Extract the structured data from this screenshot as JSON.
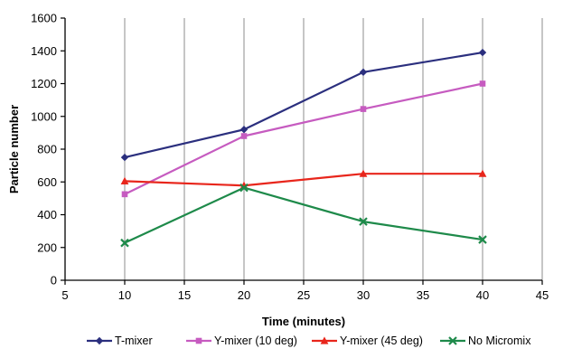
{
  "chart_data": {
    "type": "line",
    "title": "",
    "xlabel": "Time (minutes)",
    "ylabel": "Particle number",
    "xlim": [
      5,
      45
    ],
    "ylim": [
      0,
      1600
    ],
    "xticks": [
      5,
      10,
      15,
      20,
      25,
      30,
      35,
      40,
      45
    ],
    "yticks": [
      0,
      200,
      400,
      600,
      800,
      1000,
      1200,
      1400,
      1600
    ],
    "grid": {
      "vertical": true,
      "horizontal": false
    },
    "legend_position": "bottom",
    "x": [
      10,
      20,
      30,
      40
    ],
    "series": [
      {
        "name": "T-mixer",
        "values": [
          750,
          920,
          1270,
          1390
        ],
        "color": "#2b2f7e",
        "marker": "diamond"
      },
      {
        "name": "Y-mixer (10 deg)",
        "values": [
          525,
          880,
          1045,
          1200
        ],
        "color": "#c65bc0",
        "marker": "square"
      },
      {
        "name": "Y-mixer (45 deg)",
        "values": [
          605,
          578,
          650,
          650
        ],
        "color": "#e8261c",
        "marker": "triangle"
      },
      {
        "name": "No Micromix",
        "values": [
          228,
          565,
          358,
          248
        ],
        "color": "#1e8a4a",
        "marker": "x"
      }
    ]
  }
}
